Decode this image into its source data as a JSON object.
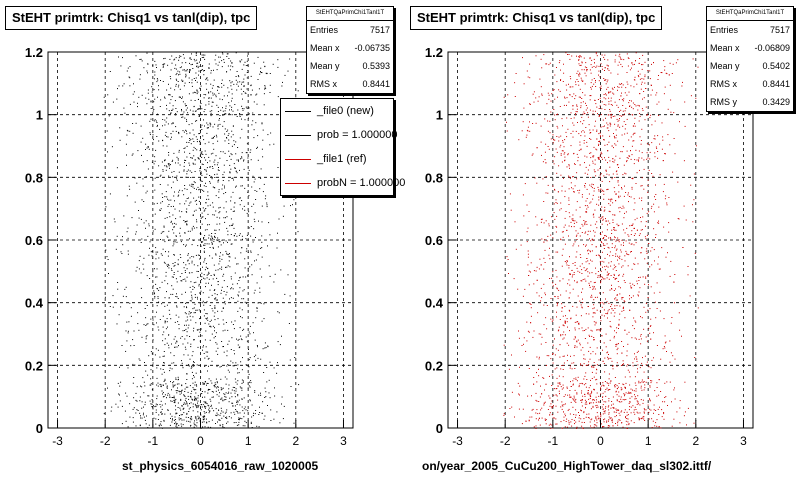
{
  "colors": {
    "new_series": "#000000",
    "ref_series": "#cc0000"
  },
  "left": {
    "title": "StEHT primtrk: Chisq1 vs tanl(dip), tpc",
    "stats": {
      "name": "StEHTQaPrimChi1Tanl1T",
      "rows": [
        {
          "label": "Entries",
          "value": "7517"
        },
        {
          "label": "Mean x",
          "value": "-0.06735"
        },
        {
          "label": "Mean y",
          "value": "0.5393"
        },
        {
          "label": "RMS x",
          "value": "0.8441"
        }
      ]
    },
    "legend": [
      {
        "label": "_file0 (new)",
        "color": "#000000"
      },
      {
        "label": "prob = 1.000000",
        "color": "#000000"
      },
      {
        "label": "_file1 (ref)",
        "color": "#cc0000"
      },
      {
        "label": "probN = 1.000000",
        "color": "#cc0000"
      }
    ],
    "xtitle": "st_physics_6054016_raw_1020005"
  },
  "right": {
    "title": "StEHT primtrk: Chisq1 vs tanl(dip), tpc",
    "stats": {
      "name": "StEHTQaPrimChi1Tanl1T",
      "rows": [
        {
          "label": "Entries",
          "value": "7517"
        },
        {
          "label": "Mean x",
          "value": "-0.06809"
        },
        {
          "label": "Mean y",
          "value": "0.5402"
        },
        {
          "label": "RMS x",
          "value": "0.8441"
        },
        {
          "label": "RMS y",
          "value": "0.3429"
        }
      ]
    },
    "xtitle": "on/year_2005_CuCu200_HighTower_daq_sl302.ittf/"
  },
  "chart_data": [
    {
      "type": "scatter",
      "title": "StEHT primtrk: Chisq1 vs tanl(dip), tpc",
      "xlabel": "st_physics_6054016_raw_1020005",
      "ylabel": "",
      "xlim": [
        -3.2,
        3.2
      ],
      "ylim": [
        0,
        1.2
      ],
      "xticks": [
        "-3",
        "-2",
        "-1",
        "0",
        "1",
        "2",
        "3"
      ],
      "yticks": [
        "0",
        "0.2",
        "0.4",
        "0.6",
        "0.8",
        "1",
        "1.2"
      ],
      "grid": true,
      "legend_position": "top-right",
      "series": [
        {
          "name": "_file0 (new)",
          "color": "#000000",
          "entries": 7517,
          "x_core_range": [
            -2,
            2
          ],
          "y_range": [
            0,
            1.2
          ]
        }
      ]
    },
    {
      "type": "scatter",
      "title": "StEHT primtrk: Chisq1 vs tanl(dip), tpc",
      "xlabel": "on/year_2005_CuCu200_HighTower_daq_sl302.ittf/",
      "ylabel": "",
      "xlim": [
        -3.2,
        3.2
      ],
      "ylim": [
        0,
        1.2
      ],
      "xticks": [
        "-3",
        "-2",
        "-1",
        "0",
        "1",
        "2",
        "3"
      ],
      "yticks": [
        "0",
        "0.2",
        "0.4",
        "0.6",
        "0.8",
        "1",
        "1.2"
      ],
      "grid": true,
      "series": [
        {
          "name": "_file1 (ref)",
          "color": "#cc0000",
          "entries": 7517,
          "x_core_range": [
            -2,
            2
          ],
          "y_range": [
            0,
            1.2
          ]
        }
      ]
    }
  ]
}
